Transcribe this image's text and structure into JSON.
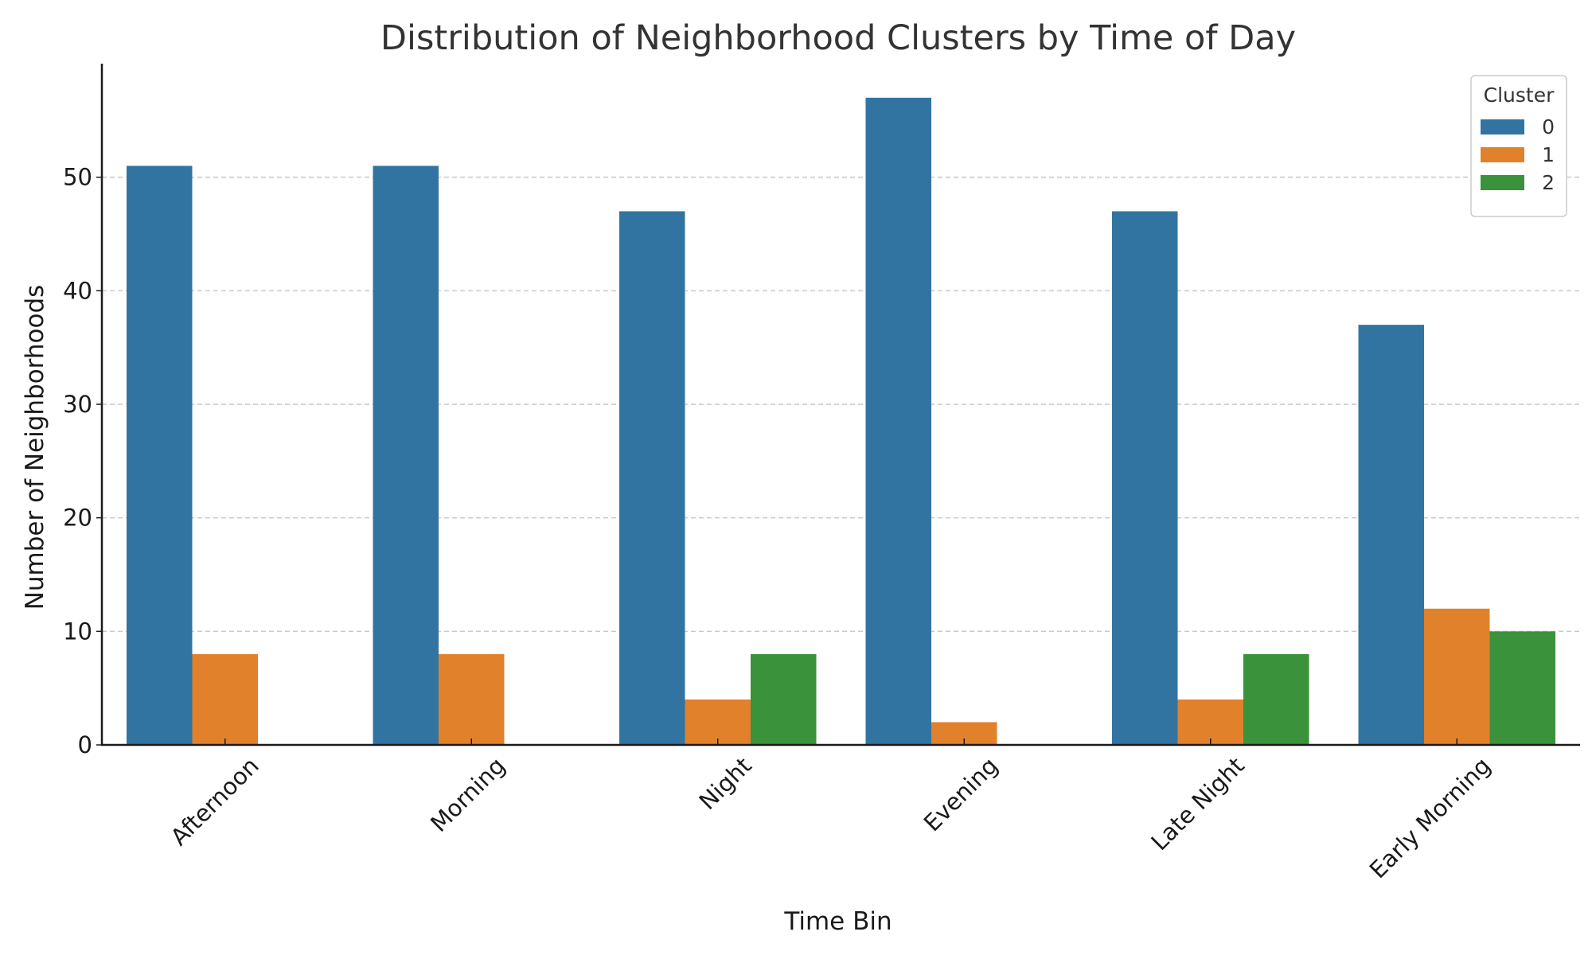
{
  "chart_data": {
    "type": "bar",
    "title": "Distribution of Neighborhood Clusters by Time of Day",
    "xlabel": "Time Bin",
    "ylabel": "Number of Neighborhoods",
    "categories": [
      "Afternoon",
      "Morning",
      "Night",
      "Evening",
      "Late Night",
      "Early Morning"
    ],
    "series": [
      {
        "name": "0",
        "color": "#3274a1",
        "values": [
          51,
          51,
          47,
          57,
          47,
          37
        ]
      },
      {
        "name": "1",
        "color": "#e1812c",
        "values": [
          8,
          8,
          4,
          2,
          4,
          12
        ]
      },
      {
        "name": "2",
        "color": "#3a923a",
        "values": [
          0,
          0,
          8,
          0,
          8,
          10
        ]
      }
    ],
    "ylim": [
      0,
      60
    ],
    "yticks": [
      0,
      10,
      20,
      30,
      40,
      50
    ],
    "grid": true,
    "grid_axis": "y",
    "legend": {
      "title": "Cluster",
      "placement": "top-right"
    }
  }
}
